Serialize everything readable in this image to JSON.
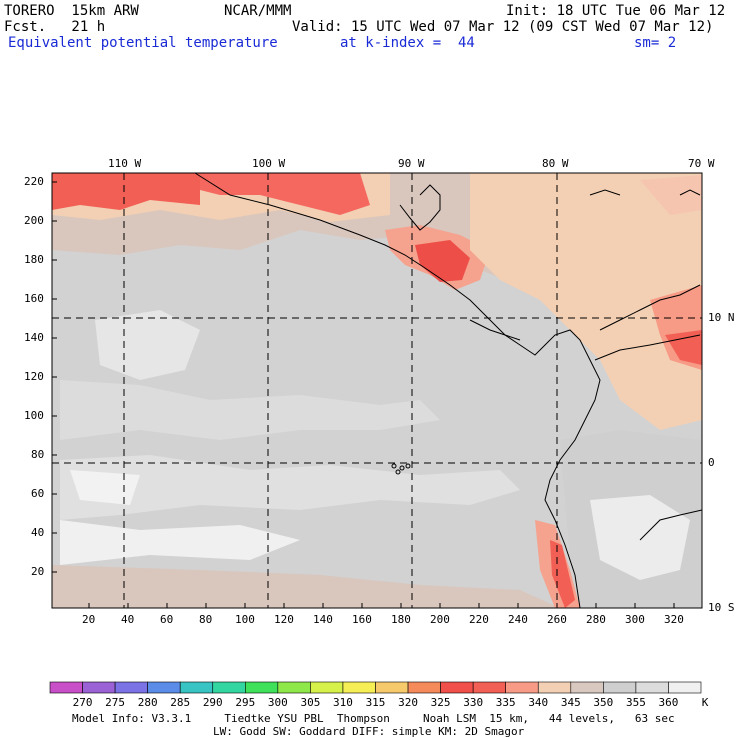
{
  "header": {
    "model": "TORERO  15km ARW",
    "org": "NCAR/MMM",
    "init": "Init: 18 UTC Tue 06 Mar 12",
    "fcst": "Fcst.   21 h",
    "valid": "Valid: 15 UTC Wed 07 Mar 12 (09 CST Wed 07 Mar 12)",
    "field": "Equivalent potential temperature",
    "level": "at k-index =  44",
    "smooth": "sm= 2"
  },
  "map": {
    "lon_labels": [
      "110 W",
      "100 W",
      "90 W",
      "80 W",
      "70 W"
    ],
    "lat_labels": [
      "10 N",
      "0",
      "10 S"
    ],
    "x_ticks": [
      "20",
      "40",
      "60",
      "80",
      "100",
      "120",
      "140",
      "160",
      "180",
      "200",
      "220",
      "240",
      "260",
      "280",
      "300",
      "320"
    ],
    "y_ticks": [
      "220",
      "200",
      "180",
      "160",
      "140",
      "120",
      "100",
      "80",
      "60",
      "40",
      "20"
    ]
  },
  "colorbar": {
    "labels": [
      "270",
      "275",
      "280",
      "285",
      "290",
      "295",
      "300",
      "305",
      "310",
      "315",
      "320",
      "325",
      "330",
      "335",
      "340",
      "345",
      "350",
      "355",
      "360"
    ],
    "unit": "K",
    "colors": [
      "#c84fc8",
      "#9b62d6",
      "#7b72e6",
      "#5a8ce8",
      "#39c4c4",
      "#33d6a0",
      "#3fe05a",
      "#8ee84a",
      "#d6f24a",
      "#f5ee55",
      "#f6c96a",
      "#f58a5a",
      "#f04f4a",
      "#f25f55",
      "#f79a86",
      "#f3d0b4",
      "#d8c8c0",
      "#cfcfcf",
      "#dcdcdc",
      "#f0f0f0"
    ]
  },
  "footer": {
    "line1": "Model Info: V3.3.1     Tiedtke YSU PBL  Thompson     Noah LSM  15 km,   44 levels,   63 sec",
    "line2": "LW: Godd SW: Goddard DIFF: simple KM: 2D Smagor"
  }
}
